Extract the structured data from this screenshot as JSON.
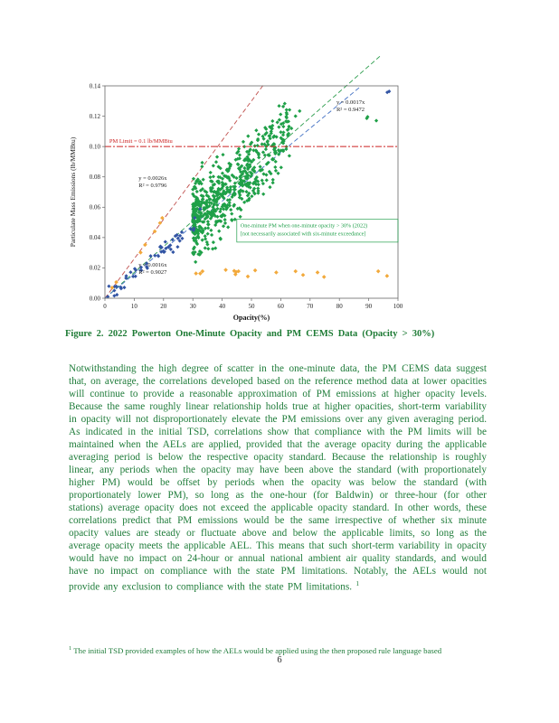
{
  "page": {
    "number": "6"
  },
  "figure": {
    "caption": "Figure 2. 2022 Powerton One-Minute Opacity and PM CEMS Data (Opacity > 30%)"
  },
  "body": {
    "paragraph": "Notwithstanding the high degree of scatter in the one-minute data, the PM CEMS data suggest that, on average, the correlations developed based on the reference method data at lower opacities will continue to provide a reasonable approximation of PM emissions at higher opacity levels. Because the same roughly linear relationship holds true at higher opacities, short-term variability in opacity will not disproportionately elevate the PM emissions over any given averaging period. As indicated in the initial TSD, correlations show that compliance with the PM limits will be maintained when the AELs are applied, provided that the average opacity during the applicable averaging period is below the respective opacity standard. Because the relationship is roughly linear, any periods when the opacity may have been above the standard (with proportionately higher PM) would be offset by periods when the opacity was below the standard (with proportionately lower PM), so long as the one-hour (for Baldwin) or three-hour (for other stations) average opacity does not exceed the applicable opacity standard. In other words, these correlations predict that PM emissions would be the same irrespective of whether six minute opacity values are steady or fluctuate above and below the applicable limits, so long as the average opacity meets the applicable AEL. This means that such short-term variability in opacity would have no impact on 24-hour or annual national ambient air quality standards, and would have no impact on compliance with the state PM limitations. Notably, the AELs would not provide any exclusion to compliance with the state PM limitations.",
    "footnote_marker": "1",
    "footnote": "The initial TSD provided examples of how the AELs would be applied using the then proposed rule language based"
  },
  "chart_data": {
    "type": "scatter",
    "title": "",
    "xlabel": "Opacity(%)",
    "ylabel": "Particulate Mass Emissions  (lb/MMBtu)",
    "xlim": [
      0,
      100
    ],
    "ylim": [
      0,
      0.14
    ],
    "xticks": [
      0,
      10,
      20,
      30,
      40,
      50,
      60,
      70,
      80,
      90,
      100
    ],
    "yticks": [
      "0.00",
      "0.02",
      "0.04",
      "0.06",
      "0.08",
      "0.10",
      "0.12",
      "0.14"
    ],
    "grid": false,
    "legend_position": "none",
    "reference_line": {
      "y": 0.1,
      "label": "PM Limit = 0.1  lb/MMBtu",
      "color": "#cc2222",
      "style": "dash-dot"
    },
    "annotation_box": {
      "line1": "One-minute PM when one-minute opacity > 30% (2022)",
      "line2": "[not necessarily associated with six-minute exceedance]",
      "color": "#22a04c",
      "x": 45,
      "y": 0.052,
      "x2": 100,
      "y2": 0.037
    },
    "trendlines": [
      {
        "eq": "y = 0.0017x",
        "r2": "R² = 0.9472",
        "slope": 0.0017,
        "color": "#2f9e4f",
        "label_x": 79,
        "label_y": 0.128,
        "extend": 112
      },
      {
        "eq": "y = 0.0026x",
        "r2": "R² = 0.9796",
        "slope": 0.0026,
        "color": "#c0504d",
        "label_x": 11.5,
        "label_y": 0.078,
        "extend": 54
      },
      {
        "eq": "y = 0.0016x",
        "r2": "R² = 0.9027",
        "slope": 0.0016,
        "color": "#4472c4",
        "label_x": 11.5,
        "label_y": 0.021,
        "extend": 87
      }
    ],
    "series": [
      {
        "name": "one-minute-pm-opacity-above-30",
        "color": "#1fa048",
        "marker": "diamond",
        "size": 2.1,
        "clusters": [
          {
            "n": 620,
            "x_min": 30,
            "x_max": 63,
            "x_bias": 1.7,
            "slope": 0.0017,
            "noise": 0.02,
            "y_min": 0.022,
            "y_max": 0.139
          },
          {
            "n": 10,
            "x_min": 55,
            "x_max": 68,
            "x_bias": 1.0,
            "slope": 0.0019,
            "noise": 0.008,
            "y_min": 0.09,
            "y_max": 0.139
          },
          {
            "n": 3,
            "x_min": 88,
            "x_max": 97,
            "x_bias": 1.0,
            "slope": 0.0013,
            "noise": 0.006,
            "y_min": 0.1,
            "y_max": 0.138
          }
        ]
      },
      {
        "name": "lower-opacity-reference-data",
        "color": "#3355a4",
        "marker": "diamond",
        "size": 2.1,
        "clusters": [
          {
            "n": 40,
            "x_min": 1,
            "x_max": 30,
            "x_bias": 1.3,
            "slope": 0.0016,
            "noise": 0.004,
            "y_min": 0.001,
            "y_max": 0.06
          },
          {
            "n": 12,
            "x_min": 18,
            "x_max": 36,
            "x_bias": 1.0,
            "slope": 0.0017,
            "noise": 0.007,
            "y_min": 0.01,
            "y_max": 0.07
          },
          {
            "n": 2,
            "x_min": 93,
            "x_max": 98,
            "x_bias": 1.0,
            "slope": 0.0014,
            "noise": 0.002,
            "y_min": 0.125,
            "y_max": 0.138
          }
        ]
      },
      {
        "name": "low-pm-band",
        "color": "#f2a93b",
        "marker": "diamond",
        "size": 2.3,
        "clusters": [
          {
            "n": 7,
            "x_min": 2,
            "x_max": 20,
            "x_bias": 1.0,
            "slope": 0.0026,
            "noise": 0.002,
            "y_min": 0.002,
            "y_max": 0.06
          },
          {
            "n": 15,
            "x_min": 30,
            "x_max": 76,
            "x_bias": 1.0,
            "slope": 0,
            "y_base": 0.017,
            "noise": 0.002,
            "y_min": 0.012,
            "y_max": 0.022
          },
          {
            "n": 2,
            "x_min": 92,
            "x_max": 97,
            "x_bias": 1.0,
            "slope": 0,
            "y_base": 0.016,
            "noise": 0.002,
            "y_min": 0.012,
            "y_max": 0.02
          }
        ]
      }
    ]
  }
}
